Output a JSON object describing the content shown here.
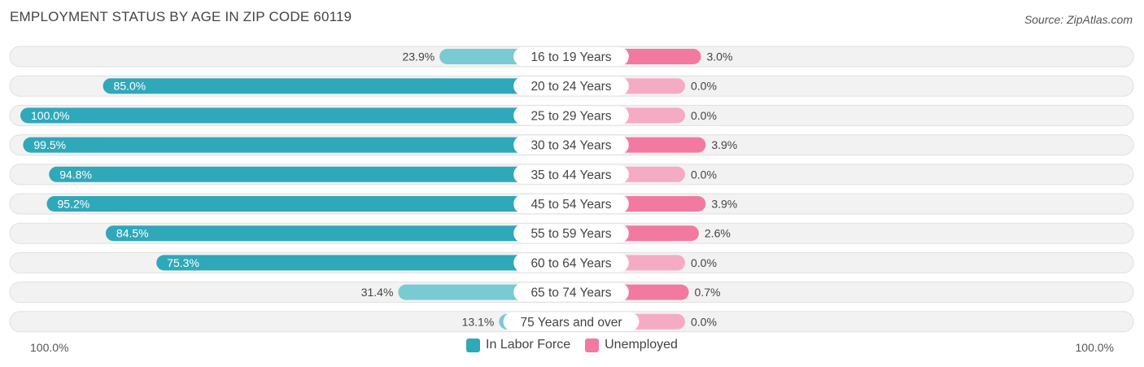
{
  "header": {
    "title": "EMPLOYMENT STATUS BY AGE IN ZIP CODE 60119",
    "source": "Source: ZipAtlas.com"
  },
  "colors": {
    "labor_strong": "#2fa8ba",
    "labor_light": "#79cad3",
    "unemployed_strong": "#f27aa0",
    "unemployed_light": "#f6abc4",
    "row_bg": "#f2f2f2",
    "row_border": "#e0e0e0"
  },
  "chart_data": {
    "type": "bar",
    "categories": [
      "16 to 19 Years",
      "20 to 24 Years",
      "25 to 29 Years",
      "30 to 34 Years",
      "35 to 44 Years",
      "45 to 54 Years",
      "55 to 59 Years",
      "60 to 64 Years",
      "65 to 74 Years",
      "75 Years and over"
    ],
    "series": [
      {
        "name": "In Labor Force",
        "values": [
          23.9,
          85.0,
          100.0,
          99.5,
          94.8,
          95.2,
          84.5,
          75.3,
          31.4,
          13.1
        ]
      },
      {
        "name": "Unemployed",
        "values": [
          3.0,
          0.0,
          0.0,
          3.9,
          0.0,
          3.9,
          2.6,
          0.0,
          0.7,
          0.0
        ]
      }
    ],
    "labor_labels": [
      "23.9%",
      "85.0%",
      "100.0%",
      "99.5%",
      "94.8%",
      "95.2%",
      "84.5%",
      "75.3%",
      "31.4%",
      "13.1%"
    ],
    "unemployed_labels": [
      "3.0%",
      "0.0%",
      "0.0%",
      "3.9%",
      "0.0%",
      "3.9%",
      "2.6%",
      "0.0%",
      "0.7%",
      "0.0%"
    ],
    "axis": {
      "left_label": "100.0%",
      "right_label": "100.0%"
    },
    "legend": {
      "position": "bottom-center",
      "items": [
        "In Labor Force",
        "Unemployed"
      ]
    }
  }
}
